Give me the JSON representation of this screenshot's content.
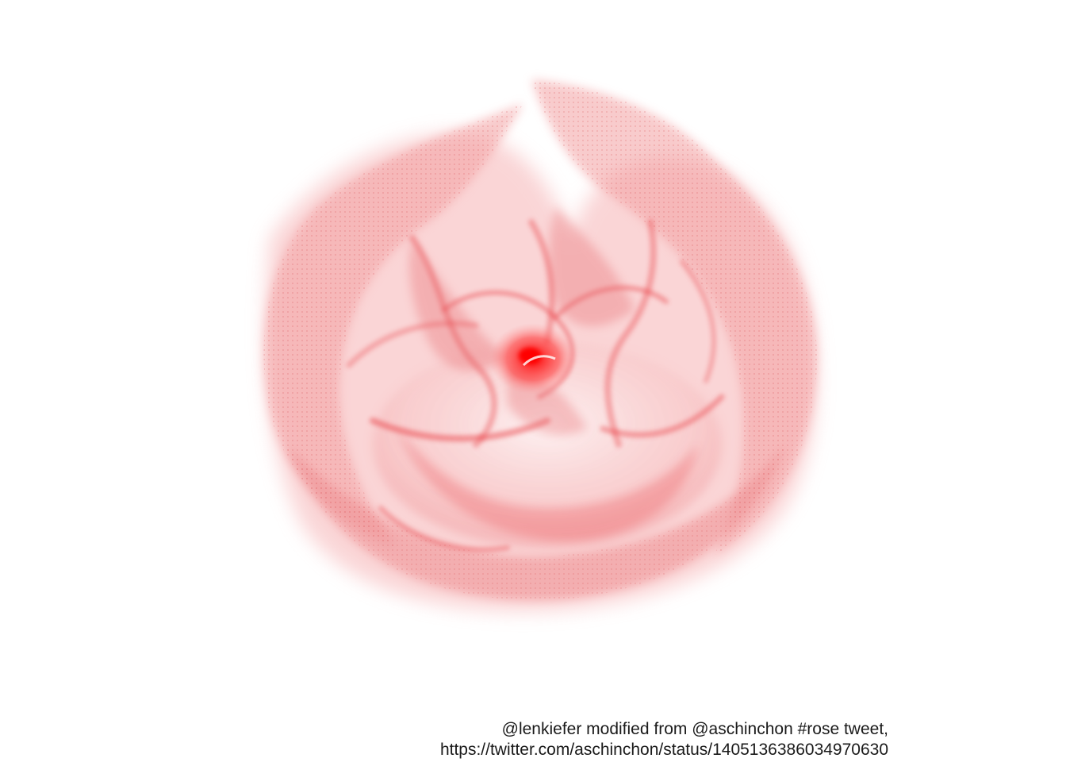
{
  "caption": {
    "line1": "@lenkiefer modified from @aschinchon #rose tweet,",
    "line2": "https://twitter.com/aschinchon/status/1405136386034970630"
  },
  "colors": {
    "background": "#ffffff",
    "petal": "#e8343a",
    "petal_light": "#f5a3a5",
    "center": "#ff0000",
    "caption_text": "#1a1a1a"
  }
}
